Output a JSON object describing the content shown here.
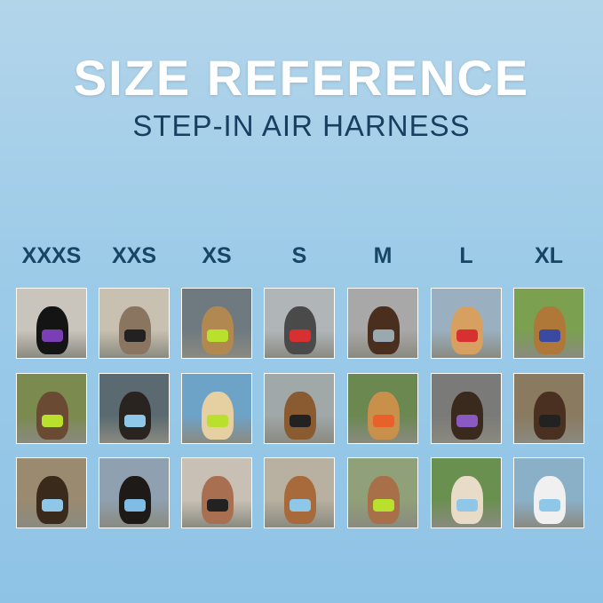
{
  "header": {
    "title": "SIZE REFERENCE",
    "subtitle": "STEP-IN AIR HARNESS"
  },
  "colors": {
    "title": "#ffffff",
    "subtitle": "#173f5f",
    "size_label": "#1a4466",
    "background": "#9ccbe8"
  },
  "sizes": [
    {
      "label": "XXXS",
      "photos": [
        {
          "bg": "#c9c4bc",
          "animal": "#141414",
          "harness": "#7a3fb5"
        },
        {
          "bg": "#7b8a4e",
          "animal": "#6b4a33",
          "harness": "#b8e02c"
        },
        {
          "bg": "#9a8a70",
          "animal": "#3a2a1c",
          "harness": "#8fc7e8"
        }
      ]
    },
    {
      "label": "XXS",
      "photos": [
        {
          "bg": "#c8c0b0",
          "animal": "#8a7560",
          "harness": "#222222"
        },
        {
          "bg": "#5a6a70",
          "animal": "#2a2420",
          "harness": "#8fc7e8"
        },
        {
          "bg": "#8fa0b0",
          "animal": "#1e1a18",
          "harness": "#7fbde6"
        }
      ]
    },
    {
      "label": "XS",
      "photos": [
        {
          "bg": "#6f7a80",
          "animal": "#b08850",
          "harness": "#b8e02c"
        },
        {
          "bg": "#6ea3c8",
          "animal": "#e6cfa0",
          "harness": "#b8e02c"
        },
        {
          "bg": "#c8c0b4",
          "animal": "#a87050",
          "harness": "#222222"
        }
      ]
    },
    {
      "label": "S",
      "photos": [
        {
          "bg": "#b0b6b8",
          "animal": "#4a4a4a",
          "harness": "#d83030"
        },
        {
          "bg": "#a0a8a8",
          "animal": "#8a5a30",
          "harness": "#222222"
        },
        {
          "bg": "#b8b0a0",
          "animal": "#a86a3a",
          "harness": "#8fc7e8"
        }
      ]
    },
    {
      "label": "M",
      "photos": [
        {
          "bg": "#a8a8a8",
          "animal": "#4a2e1e",
          "harness": "#9aa8b0"
        },
        {
          "bg": "#6a8850",
          "animal": "#c8904a",
          "harness": "#e8602a"
        },
        {
          "bg": "#90a078",
          "animal": "#a87048",
          "harness": "#b8e02c"
        }
      ]
    },
    {
      "label": "L",
      "photos": [
        {
          "bg": "#9ab0c0",
          "animal": "#d8a060",
          "harness": "#d83030"
        },
        {
          "bg": "#7a7a78",
          "animal": "#3a2a1e",
          "harness": "#8a5ac0"
        },
        {
          "bg": "#6a9050",
          "animal": "#e8dcc8",
          "harness": "#8fc7e8"
        }
      ]
    },
    {
      "label": "XL",
      "photos": [
        {
          "bg": "#7aa050",
          "animal": "#b07838",
          "harness": "#3a4aa0"
        },
        {
          "bg": "#8a7a60",
          "animal": "#4a3020",
          "harness": "#222222"
        },
        {
          "bg": "#8ab0c8",
          "animal": "#f0f0f0",
          "harness": "#8fc7e8"
        }
      ]
    }
  ]
}
